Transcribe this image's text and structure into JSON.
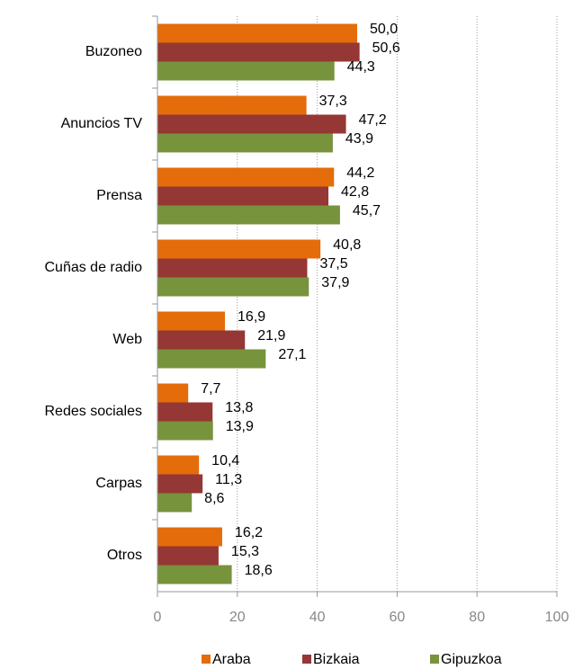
{
  "chart_data": {
    "type": "barh",
    "categories": [
      "Buzoneo",
      "Anuncios TV",
      "Prensa",
      "Cuñas de radio",
      "Web",
      "Redes sociales",
      "Carpas",
      "Otros"
    ],
    "series": [
      {
        "name": "Araba",
        "color": "#e46c0a",
        "values": [
          50.0,
          37.3,
          44.2,
          40.8,
          16.9,
          7.7,
          10.4,
          16.2
        ],
        "value_labels": [
          "50,0",
          "37,3",
          "44,2",
          "40,8",
          "16,9",
          "7,7",
          "10,4",
          "16,2"
        ]
      },
      {
        "name": "Bizkaia",
        "color": "#953735",
        "values": [
          50.6,
          47.2,
          42.8,
          37.5,
          21.9,
          13.8,
          11.3,
          15.3
        ],
        "value_labels": [
          "50,6",
          "47,2",
          "42,8",
          "37,5",
          "21,9",
          "13,8",
          "11,3",
          "15,3"
        ]
      },
      {
        "name": "Gipuzkoa",
        "color": "#77933c",
        "values": [
          44.3,
          43.9,
          45.7,
          37.9,
          27.1,
          13.9,
          8.6,
          18.6
        ],
        "value_labels": [
          "44,3",
          "43,9",
          "45,7",
          "37,9",
          "27,1",
          "13,9",
          "8,6",
          "18,6"
        ]
      }
    ],
    "xlim": [
      0,
      100
    ],
    "xticks": [
      0,
      20,
      40,
      60,
      80,
      100
    ],
    "grid": true,
    "legend": "bottom"
  }
}
